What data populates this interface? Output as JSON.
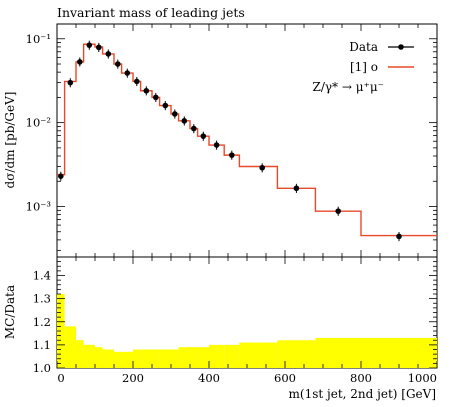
{
  "chart_data": [
    {
      "type": "step-with-points",
      "title": "Invariant mass of leading jets",
      "ylabel": "dσ/dm [pb/GeV]",
      "xlim": [
        0,
        1000
      ],
      "ylim": [
        0.00025,
        0.15
      ],
      "log_y": true,
      "ytick_labels": [
        "10⁻¹",
        "10⁻²",
        "10⁻³"
      ],
      "ytick_values": [
        0.1,
        0.01,
        0.001
      ],
      "legend": {
        "position": "top-right",
        "entries": [
          "Data",
          "[1] o"
        ],
        "process_label": "Z/γ* → μ⁺μ⁻"
      },
      "series": [
        {
          "name": "Data",
          "color": "#000000",
          "x": [
            10,
            35,
            60,
            85,
            110,
            135,
            160,
            185,
            210,
            235,
            260,
            285,
            310,
            335,
            360,
            385,
            420,
            460,
            540,
            630,
            740,
            900
          ],
          "y": [
            0.0023,
            0.03,
            0.053,
            0.084,
            0.079,
            0.066,
            0.05,
            0.039,
            0.031,
            0.024,
            0.02,
            0.016,
            0.0127,
            0.0105,
            0.0085,
            0.0069,
            0.0054,
            0.0041,
            0.0029,
            0.00165,
            0.00088,
            0.00044
          ]
        },
        {
          "name": "[1] o",
          "color": "#e8482a",
          "bin_edges": [
            0,
            20,
            50,
            70,
            100,
            120,
            150,
            170,
            200,
            220,
            250,
            270,
            300,
            320,
            350,
            370,
            400,
            440,
            480,
            580,
            680,
            800,
            1000
          ],
          "values": [
            0.0024,
            0.031,
            0.053,
            0.086,
            0.08,
            0.066,
            0.05,
            0.039,
            0.031,
            0.024,
            0.02,
            0.016,
            0.0127,
            0.0105,
            0.0085,
            0.0069,
            0.0054,
            0.0041,
            0.003,
            0.00165,
            0.00088,
            0.00045
          ]
        }
      ]
    },
    {
      "type": "ratio-band",
      "ylabel": "MC/Data",
      "xlabel": "m(1st jet, 2nd jet) [GeV]",
      "xlim": [
        0,
        1000
      ],
      "ylim": [
        1.0,
        1.48
      ],
      "xticks": [
        0,
        200,
        400,
        600,
        800,
        1000
      ],
      "yticks": [
        1.0,
        1.1,
        1.2,
        1.3,
        1.4
      ],
      "band_color": "#ffff00",
      "bin_edges": [
        0,
        20,
        50,
        70,
        100,
        120,
        150,
        170,
        200,
        220,
        250,
        270,
        300,
        320,
        350,
        370,
        400,
        440,
        480,
        580,
        680,
        800,
        1000
      ],
      "upper": [
        1.32,
        1.18,
        1.12,
        1.1,
        1.09,
        1.08,
        1.07,
        1.07,
        1.08,
        1.08,
        1.08,
        1.08,
        1.08,
        1.09,
        1.09,
        1.09,
        1.1,
        1.1,
        1.11,
        1.12,
        1.13,
        1.13,
        1.19
      ],
      "lower": [
        1.0,
        1.0,
        1.0,
        1.0,
        1.0,
        1.0,
        1.0,
        1.0,
        1.0,
        1.0,
        1.0,
        1.0,
        1.0,
        1.0,
        1.0,
        1.0,
        1.0,
        1.0,
        1.0,
        1.0,
        1.0,
        1.0,
        1.0
      ]
    }
  ]
}
